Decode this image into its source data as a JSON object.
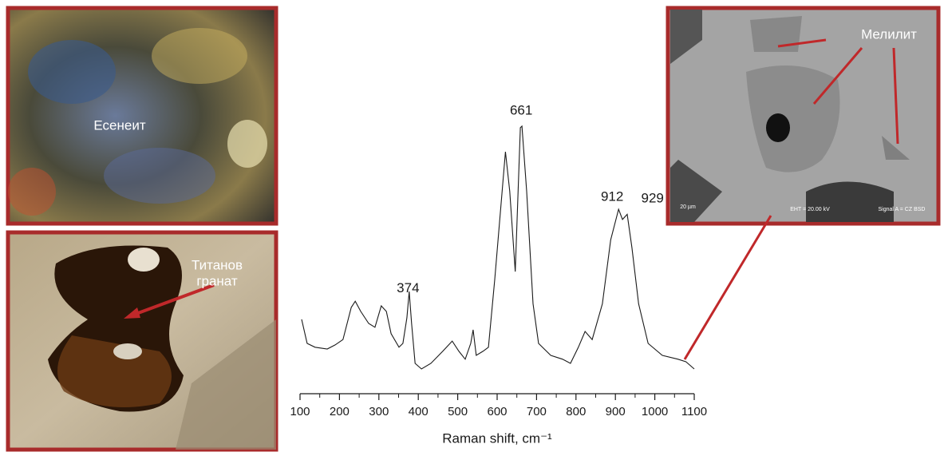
{
  "chart_data": {
    "type": "line",
    "xlabel": "Raman shift, cm⁻¹",
    "x": [
      104,
      118,
      138,
      169,
      189,
      209,
      230,
      240,
      254,
      274,
      290,
      306,
      319,
      331,
      351,
      361,
      371,
      377,
      383,
      392,
      408,
      432,
      462,
      486,
      503,
      519,
      533,
      539,
      547,
      564,
      578,
      594,
      611,
      621,
      632,
      646,
      659,
      663,
      675,
      691,
      705,
      736,
      766,
      786,
      806,
      823,
      841,
      867,
      888,
      908,
      918,
      930,
      942,
      959,
      983,
      1019,
      1059,
      1079,
      1100
    ],
    "series": [
      {
        "color": "#1a1a1a",
        "values": [
          21.9,
          12.5,
          11,
          10.3,
          11.9,
          14,
          26.6,
          29,
          25,
          20.3,
          18.8,
          27.2,
          25,
          16.3,
          11,
          12.5,
          22.5,
          32.8,
          20.3,
          4.7,
          2.5,
          4.7,
          9.4,
          13.4,
          9.4,
          6.3,
          12.5,
          17.8,
          7.8,
          9.4,
          11,
          37.5,
          68.8,
          87.5,
          72,
          40.6,
          96.9,
          97.5,
          72,
          28,
          12.5,
          7.8,
          6.3,
          4.7,
          11,
          17.2,
          14,
          28,
          53,
          65,
          61,
          63,
          50,
          28,
          12.5,
          7.8,
          6.3,
          5.3,
          2.5
        ]
      }
    ],
    "peaks": [
      374,
      661,
      912,
      929
    ],
    "xlim": [
      100,
      1100
    ],
    "ylim": [
      0,
      100
    ],
    "xticks": [
      100,
      200,
      300,
      400,
      500,
      600,
      700,
      800,
      900,
      1000,
      1100
    ],
    "xminorticks": [
      150,
      250,
      350,
      450,
      550,
      650,
      750,
      850,
      950,
      1050
    ]
  },
  "images": {
    "top_left": {
      "label": "Есенеит"
    },
    "bottom_left": {
      "label_lines": [
        "Титанов",
        "гранат"
      ]
    },
    "right": {
      "label": "Мелилит",
      "scale": "20 µm",
      "eht": "EHT = 20.00 kV",
      "signal": "Signal A = CZ BSD"
    }
  }
}
